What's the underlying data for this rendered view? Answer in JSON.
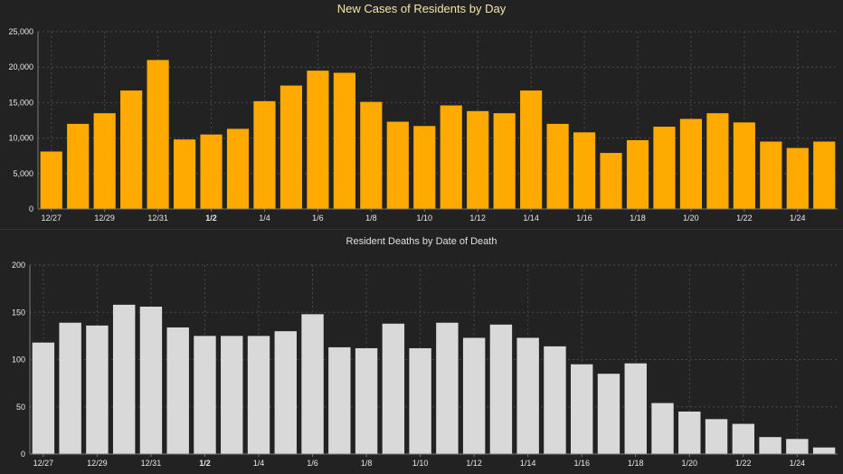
{
  "colors": {
    "background": "#222222",
    "grid": "#4a4a4a",
    "axis": "#7a7a7a",
    "tick_text": "#e8e8e8",
    "cases_title": "#f5e6a8",
    "deaths_title": "#e0e0e0",
    "cases_bar": "#ffaa00",
    "deaths_bar": "#d9d9d9"
  },
  "chart_data": [
    {
      "type": "bar",
      "title": "New Cases of Residents by Day",
      "xlabel": "",
      "ylabel": "",
      "categories": [
        "12/27",
        "12/28",
        "12/29",
        "12/30",
        "12/31",
        "1/1",
        "1/2",
        "1/3",
        "1/4",
        "1/5",
        "1/6",
        "1/7",
        "1/8",
        "1/9",
        "1/10",
        "1/11",
        "1/12",
        "1/13",
        "1/14",
        "1/15",
        "1/16",
        "1/17",
        "1/18",
        "1/19",
        "1/20",
        "1/21",
        "1/22",
        "1/23",
        "1/24",
        "1/25"
      ],
      "tick_labels": [
        "12/27",
        "12/29",
        "12/31",
        "1/2",
        "1/4",
        "1/6",
        "1/8",
        "1/10",
        "1/12",
        "1/14",
        "1/16",
        "1/18",
        "1/20",
        "1/22",
        "1/24"
      ],
      "bold_tick": "1/2",
      "values": [
        8100,
        12000,
        13500,
        16700,
        21000,
        9800,
        10500,
        11300,
        15200,
        17400,
        19500,
        19200,
        15100,
        12300,
        11700,
        14600,
        13800,
        13500,
        16700,
        12000,
        10800,
        7900,
        9700,
        11600,
        12700,
        13500,
        12200,
        9500,
        8600,
        9500
      ],
      "y_ticks": [
        "0",
        "5,000",
        "10,000",
        "15,000",
        "20,000",
        "25,000"
      ],
      "ylim": [
        0,
        25000
      ],
      "grid": true,
      "legend": "none"
    },
    {
      "type": "bar",
      "title": "Resident Deaths by Date of Death",
      "xlabel": "",
      "ylabel": "",
      "categories": [
        "12/27",
        "12/28",
        "12/29",
        "12/30",
        "12/31",
        "1/1",
        "1/2",
        "1/3",
        "1/4",
        "1/5",
        "1/6",
        "1/7",
        "1/8",
        "1/9",
        "1/10",
        "1/11",
        "1/12",
        "1/13",
        "1/14",
        "1/15",
        "1/16",
        "1/17",
        "1/18",
        "1/19",
        "1/20",
        "1/21",
        "1/22",
        "1/23",
        "1/24",
        "1/25"
      ],
      "tick_labels": [
        "12/27",
        "12/29",
        "12/31",
        "1/2",
        "1/4",
        "1/6",
        "1/8",
        "1/10",
        "1/12",
        "1/14",
        "1/16",
        "1/18",
        "1/20",
        "1/22",
        "1/24"
      ],
      "bold_tick": "1/2",
      "values": [
        118,
        139,
        136,
        158,
        156,
        134,
        125,
        125,
        125,
        130,
        148,
        113,
        112,
        138,
        112,
        139,
        123,
        137,
        123,
        114,
        95,
        85,
        96,
        54,
        45,
        37,
        32,
        18,
        16,
        7
      ],
      "y_ticks": [
        "0",
        "50",
        "100",
        "150",
        "200"
      ],
      "ylim": [
        0,
        200
      ],
      "grid": true,
      "legend": "none"
    }
  ]
}
